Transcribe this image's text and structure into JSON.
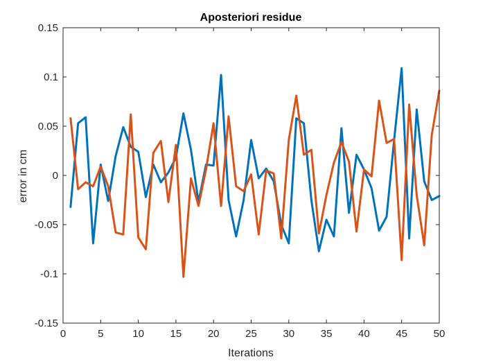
{
  "chart_data": {
    "type": "line",
    "title": "Aposteriori residue",
    "xlabel": "Iterations",
    "ylabel": "error in cm",
    "xlim": [
      0,
      50
    ],
    "ylim": [
      -0.15,
      0.15
    ],
    "xticks": [
      0,
      5,
      10,
      15,
      20,
      25,
      30,
      35,
      40,
      45,
      50
    ],
    "yticks": [
      -0.15,
      -0.1,
      -0.05,
      0,
      0.05,
      0.1,
      0.15
    ],
    "xtick_labels": [
      "0",
      "5",
      "10",
      "15",
      "20",
      "25",
      "30",
      "35",
      "40",
      "45",
      "50"
    ],
    "ytick_labels": [
      "-0.15",
      "-0.1",
      "-0.05",
      "0",
      "0.05",
      "0.1",
      "0.15"
    ],
    "grid": false,
    "x": [
      1,
      2,
      3,
      4,
      5,
      6,
      7,
      8,
      9,
      10,
      11,
      12,
      13,
      14,
      15,
      16,
      17,
      18,
      19,
      20,
      21,
      22,
      23,
      24,
      25,
      26,
      27,
      28,
      29,
      30,
      31,
      32,
      33,
      34,
      35,
      36,
      37,
      38,
      39,
      40,
      41,
      42,
      43,
      44,
      45,
      46,
      47,
      48,
      49,
      50
    ],
    "series": [
      {
        "color": "#0072BD",
        "values": [
          -0.032,
          0.053,
          0.059,
          -0.069,
          0.011,
          -0.026,
          0.02,
          0.049,
          0.029,
          0.024,
          -0.022,
          0.011,
          -0.007,
          0.003,
          0.018,
          0.063,
          0.026,
          -0.027,
          0.011,
          0.01,
          0.102,
          -0.025,
          -0.062,
          -0.025,
          0.036,
          -0.003,
          0.007,
          -0.006,
          -0.05,
          -0.069,
          0.058,
          0.053,
          -0.025,
          -0.077,
          -0.045,
          -0.062,
          0.048,
          -0.038,
          0.021,
          0.006,
          -0.013,
          -0.056,
          -0.042,
          0.036,
          0.109,
          -0.064,
          0.067,
          -0.006,
          -0.025,
          -0.021
        ]
      },
      {
        "color": "#D95319",
        "values": [
          0.058,
          -0.014,
          -0.007,
          -0.011,
          0.009,
          -0.011,
          -0.058,
          -0.06,
          0.062,
          -0.063,
          -0.075,
          0.023,
          0.035,
          -0.027,
          0.031,
          -0.103,
          -0.003,
          -0.031,
          0.006,
          0.053,
          -0.031,
          0.06,
          -0.011,
          -0.016,
          0.001,
          -0.06,
          0.005,
          0.002,
          -0.064,
          0.036,
          0.081,
          0.021,
          0.026,
          -0.059,
          -0.02,
          0.013,
          0.034,
          0.014,
          -0.057,
          0.006,
          -0.001,
          0.076,
          0.033,
          0.037,
          -0.086,
          0.072,
          -0.02,
          -0.071,
          0.041,
          0.086
        ]
      }
    ]
  }
}
